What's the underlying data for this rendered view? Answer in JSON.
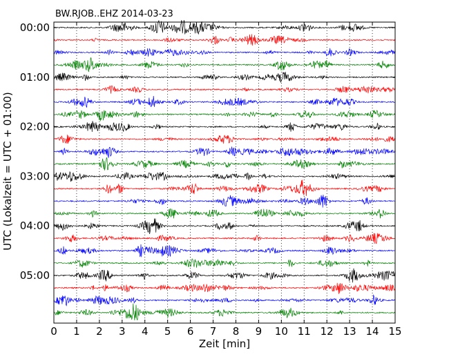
{
  "chart_data": {
    "type": "line",
    "title": "BW.RJOB..EHZ 2014-03-23",
    "xlabel": "Zeit  [min]",
    "ylabel": "UTC (Lokalzeit = UTC + 01:00)",
    "xlim": [
      0,
      15
    ],
    "x_ticks": [
      0,
      1,
      2,
      3,
      4,
      5,
      6,
      7,
      8,
      9,
      10,
      11,
      12,
      13,
      14,
      15
    ],
    "x_tick_labels": [
      "0",
      "1",
      "2",
      "3",
      "4",
      "5",
      "6",
      "7",
      "8",
      "9",
      "10",
      "11",
      "12",
      "13",
      "14",
      "15"
    ],
    "grid": "vertical-dotted",
    "trace_interval_minutes": 15,
    "trace_count": 24,
    "trace_colors": [
      "#000000",
      "#ff0000",
      "#0000ff",
      "#008000"
    ],
    "y_tick_labels": [
      "00:00",
      "01:00",
      "02:00",
      "03:00",
      "04:00",
      "05:00"
    ],
    "y_tick_trace_index": [
      0,
      4,
      8,
      12,
      16,
      20
    ]
  }
}
